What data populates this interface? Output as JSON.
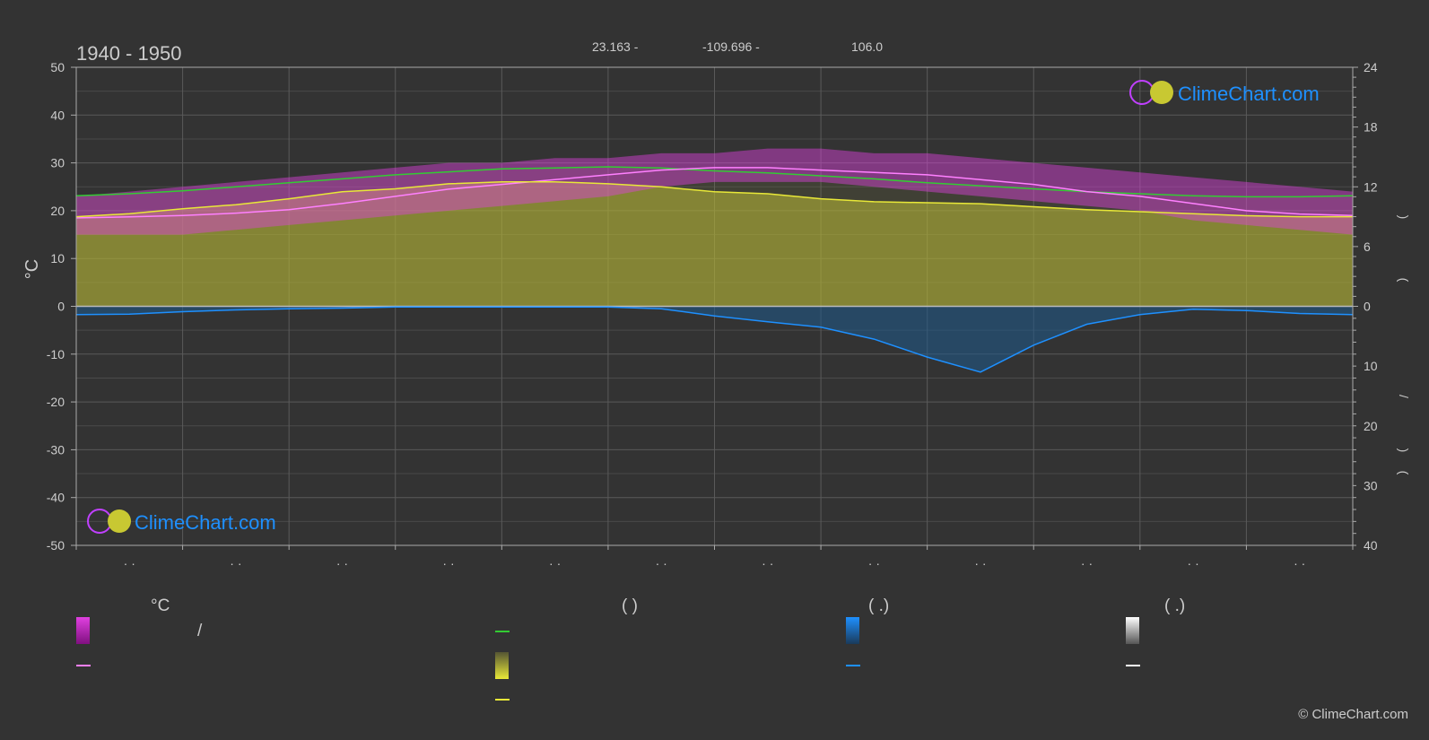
{
  "header": {
    "period": "1940 - 1950",
    "latitude": "23.163 -",
    "longitude": "-109.696 -",
    "elevation": "106.0"
  },
  "logo": {
    "text": "ClimeChart.com"
  },
  "copyright": "© ClimeChart.com",
  "colors": {
    "background": "#333333",
    "temp_range_band": "#e040e0",
    "avg_temp_line": "#ff80ff",
    "daylight_line": "#33cc33",
    "sunshine_band": "#c8c832",
    "sunshine_line": "#e8e838",
    "precip_band": "#1e5a8c",
    "precip_line": "#1e90ff",
    "snow_line": "#ffffff",
    "grid": "#666666",
    "text": "#cccccc"
  },
  "chart_data": {
    "type": "area",
    "left_axis": {
      "label": "°C",
      "ticks": [
        "50",
        "40",
        "30",
        "20",
        "10",
        "0",
        "-10",
        "-20",
        "-30",
        "-40",
        "-50"
      ],
      "range": [
        -50,
        50
      ]
    },
    "right_axis_top": {
      "ticks": [
        "24",
        "18",
        "12",
        "6",
        "0"
      ],
      "range": [
        0,
        24
      ]
    },
    "right_axis_bottom": {
      "ticks": [
        "0",
        "10",
        "20",
        "30",
        "40"
      ],
      "range": [
        0,
        40
      ]
    },
    "right_axis_symbols": [
      ")",
      "(",
      "/",
      ")",
      "("
    ],
    "x_month_labels": [
      "· ·",
      "· ·",
      "· ·",
      "· ·",
      "· ·",
      "· ·",
      "· ·",
      "· ·",
      "· ·",
      "· ·",
      "· ·",
      "· ·"
    ],
    "x": [
      0,
      0.5,
      1,
      1.5,
      2,
      2.5,
      3,
      3.5,
      4,
      4.5,
      5,
      5.5,
      6,
      6.5,
      7,
      7.5,
      8,
      8.5,
      9,
      9.5,
      10,
      10.5,
      11,
      11.5,
      12
    ],
    "series": [
      {
        "key": "daylight",
        "unit": "h",
        "values": [
          11.1,
          11.3,
          11.6,
          12.0,
          12.4,
          12.8,
          13.2,
          13.5,
          13.8,
          13.9,
          14.0,
          13.9,
          13.6,
          13.4,
          13.1,
          12.8,
          12.4,
          12.1,
          11.8,
          11.5,
          11.3,
          11.1,
          11.0,
          11.0,
          11.1
        ]
      },
      {
        "key": "sunshine",
        "unit": "h",
        "values": [
          9.0,
          9.3,
          9.8,
          10.2,
          10.8,
          11.5,
          11.8,
          12.3,
          12.5,
          12.5,
          12.3,
          12.0,
          11.5,
          11.3,
          10.8,
          10.5,
          10.4,
          10.3,
          10.0,
          9.7,
          9.5,
          9.3,
          9.1,
          9.0,
          9.0
        ]
      },
      {
        "key": "avg_temp",
        "unit": "°C",
        "values": [
          18.5,
          18.7,
          19.0,
          19.5,
          20.2,
          21.5,
          23.0,
          24.5,
          25.5,
          26.5,
          27.5,
          28.5,
          29.0,
          29.0,
          28.5,
          28.0,
          27.5,
          26.5,
          25.5,
          24.0,
          23.0,
          21.5,
          20.0,
          19.3,
          19.0
        ]
      },
      {
        "key": "precip",
        "unit": "mm",
        "values": [
          1.4,
          1.3,
          0.9,
          0.6,
          0.4,
          0.3,
          0.1,
          0.1,
          0.1,
          0.1,
          0.1,
          0.4,
          1.6,
          2.6,
          3.5,
          5.5,
          8.5,
          11.0,
          6.5,
          3.0,
          1.4,
          0.5,
          0.7,
          1.2,
          1.4
        ]
      },
      {
        "key": "temp_max",
        "unit": "°C",
        "values": [
          23,
          24,
          25,
          26,
          27,
          28,
          29,
          30,
          30,
          31,
          31,
          32,
          32,
          33,
          33,
          32,
          32,
          31,
          30,
          29,
          28,
          27,
          26,
          25,
          24
        ]
      },
      {
        "key": "temp_min",
        "unit": "°C",
        "values": [
          15,
          15,
          15,
          16,
          17,
          18,
          19,
          20,
          21,
          22,
          23,
          25,
          26,
          26,
          26,
          25,
          24,
          23,
          22,
          21,
          20,
          18,
          17,
          16,
          15
        ]
      }
    ]
  },
  "legend": {
    "col1": {
      "heading": "°C",
      "item1": "/",
      "item2": ""
    },
    "col2": {
      "heading": "(          )",
      "item1": "",
      "item2": "",
      "item3": ""
    },
    "col3": {
      "heading": "(   .)",
      "item1": "",
      "item2": ""
    },
    "col4": {
      "heading": "(   .)",
      "item1": "",
      "item2": ""
    }
  }
}
